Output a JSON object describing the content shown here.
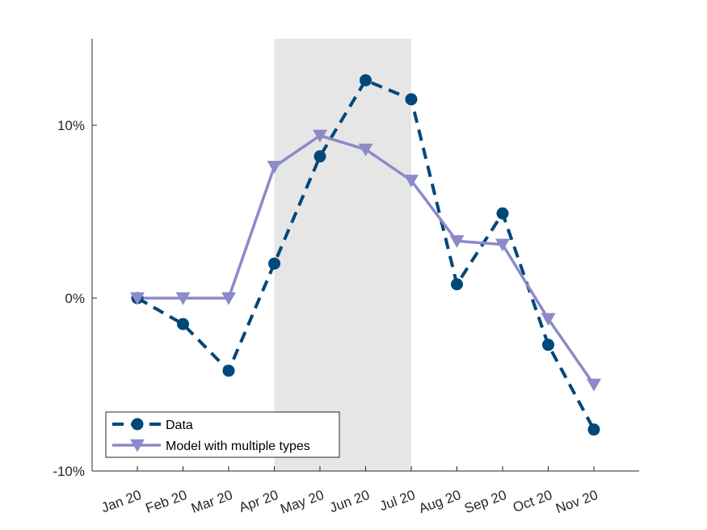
{
  "chart_data": {
    "type": "line",
    "categories": [
      "Jan 20",
      "Feb 20",
      "Mar 20",
      "Apr 20",
      "May 20",
      "Jun 20",
      "Jul 20",
      "Aug 20",
      "Sep 20",
      "Oct 20",
      "Nov 20"
    ],
    "series": [
      {
        "name": "Data",
        "values": [
          0.0,
          -1.5,
          -4.2,
          2.0,
          8.2,
          12.6,
          11.5,
          0.8,
          4.9,
          -2.7,
          -7.6
        ],
        "color": "#00487a",
        "line_style": "dashed",
        "marker": "circle"
      },
      {
        "name": "Model with multiple types",
        "values": [
          0.0,
          0.0,
          0.0,
          7.6,
          9.4,
          8.6,
          6.8,
          3.3,
          3.1,
          -1.2,
          -5.0
        ],
        "color": "#8c8ac8",
        "line_style": "solid",
        "marker": "triangle-down"
      }
    ],
    "ylim": [
      -10,
      15
    ],
    "yticks": [
      -10,
      0,
      10
    ],
    "ytick_labels": [
      "-10%",
      "0%",
      "10%"
    ],
    "shaded_region": {
      "from": "Apr 20",
      "to": "Jul 20",
      "color": "#e6e6e6"
    },
    "legend_position": "bottom-left",
    "grid": false
  }
}
